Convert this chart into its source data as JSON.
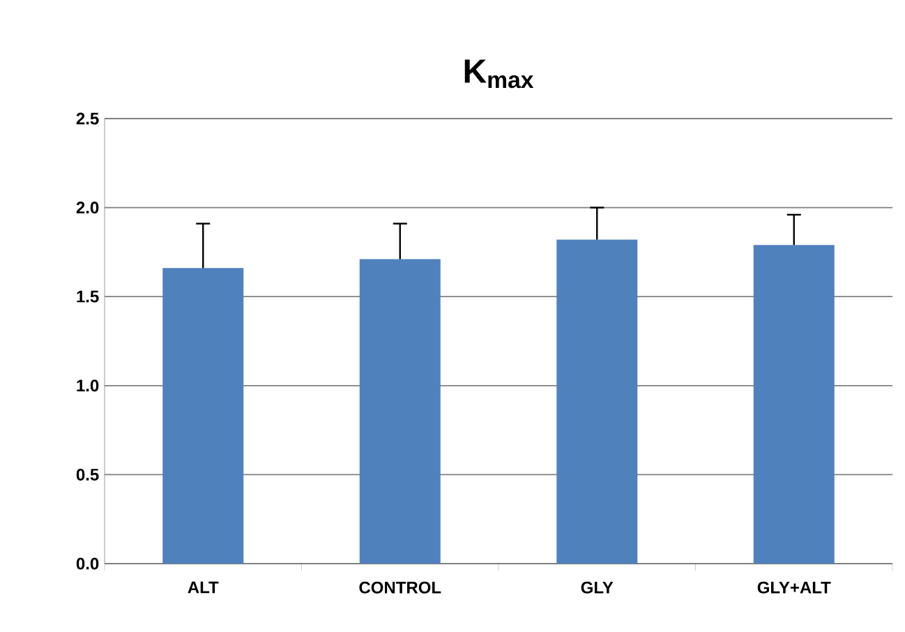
{
  "chart_data": {
    "type": "bar",
    "title": "**K$_{max}$**",
    "categories": [
      "ALT",
      "CONTROL",
      "GLY",
      "GLY+ALT"
    ],
    "values": [
      1.66,
      1.71,
      1.82,
      1.79
    ],
    "errors": [
      [
        1.66,
        1.91
      ],
      [
        1.71,
        1.91
      ],
      [
        1.82,
        2.0
      ],
      [
        1.79,
        1.96
      ]
    ],
    "color": "#4f81bd",
    "ylim": [
      0,
      2.5
    ],
    "yticks": [
      {
        "value": 0,
        "label": "0.0"
      },
      {
        "value": 0.5,
        "label": "0.5"
      },
      {
        "value": 1,
        "label": "1.0"
      },
      {
        "value": 1.5,
        "label": "1.5"
      },
      {
        "value": 2,
        "label": "2.0"
      },
      {
        "value": 2.5,
        "label": "2.5"
      }
    ],
    "grid": "y"
  }
}
